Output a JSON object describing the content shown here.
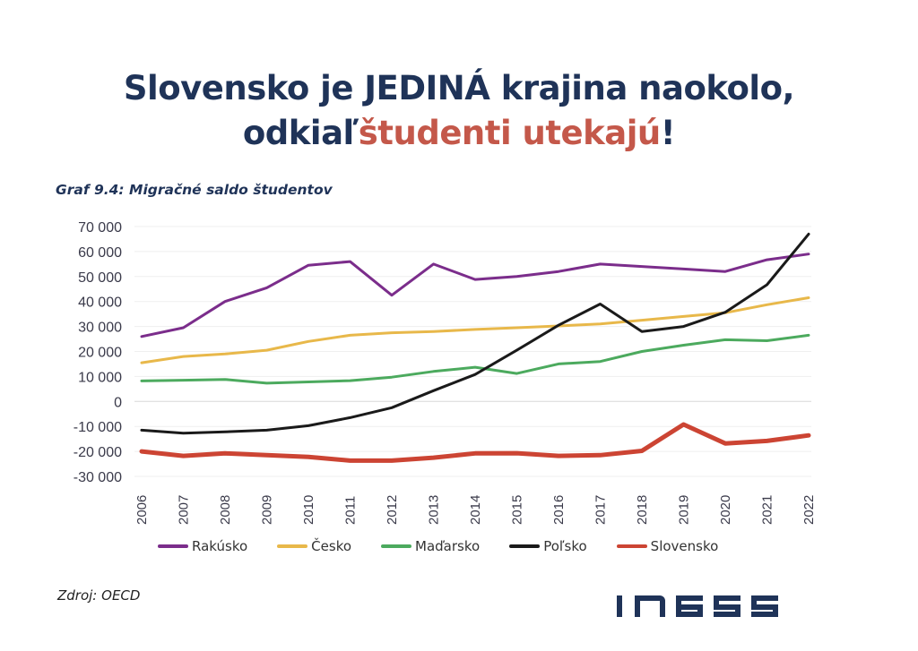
{
  "headline": {
    "line1": "Slovensko je JEDINÁ krajina naokolo,",
    "line2_prefix": "odkiaľ",
    "line2_accent": "študenti utekajú",
    "line2_suffix": "!",
    "colors": {
      "main": "#1f3358",
      "accent": "#c4584a"
    }
  },
  "subtitle": "Graf 9.4: Migračné saldo študentov",
  "source": "Zdroj: OECD",
  "logo": {
    "text": "iness",
    "color": "#1f3358"
  },
  "chart_data": {
    "type": "line",
    "title": "Graf 9.4: Migračné saldo študentov",
    "xlabel": "",
    "ylabel": "",
    "ylim": [
      -30000,
      70000
    ],
    "yticks": [
      70000,
      60000,
      50000,
      40000,
      30000,
      20000,
      10000,
      0,
      -10000,
      -20000,
      -30000
    ],
    "ytick_labels": [
      "70 000",
      "60 000",
      "50 000",
      "40 000",
      "30 000",
      "20 000",
      "10 000",
      "0",
      "-10 000",
      "-20 000",
      "-30 000"
    ],
    "grid": true,
    "legend_position": "bottom",
    "x": [
      "2006",
      "2007",
      "2008",
      "2009",
      "2010",
      "2011",
      "2012",
      "2013",
      "2014",
      "2015",
      "2016",
      "2017",
      "2018",
      "2019",
      "2020",
      "2021",
      "2022"
    ],
    "series": [
      {
        "name": "Rakúsko",
        "color": "#7b2d8b",
        "width": 3,
        "values": [
          26000,
          29500,
          40000,
          45500,
          54500,
          56000,
          42500,
          55000,
          48800,
          50000,
          52000,
          55000,
          54000,
          53000,
          52000,
          56700,
          59000
        ]
      },
      {
        "name": "Česko",
        "color": "#e8b84a",
        "width": 3,
        "values": [
          15500,
          18000,
          19000,
          20500,
          24000,
          26500,
          27500,
          28000,
          28800,
          29500,
          30200,
          31000,
          32500,
          34000,
          35500,
          38700,
          41500
        ]
      },
      {
        "name": "Maďarsko",
        "color": "#4caa5e",
        "width": 3,
        "values": [
          8200,
          8500,
          8800,
          7300,
          7800,
          8300,
          9700,
          12000,
          13700,
          11200,
          15000,
          16000,
          20000,
          22500,
          24700,
          24300,
          26500
        ]
      },
      {
        "name": "Poľsko",
        "color": "#1a1a1a",
        "width": 3,
        "values": [
          -11500,
          -12700,
          -12200,
          -11500,
          -9700,
          -6500,
          -2500,
          4300,
          10800,
          20500,
          30500,
          39000,
          28000,
          30000,
          35700,
          46700,
          67000
        ]
      },
      {
        "name": "Slovensko",
        "color": "#cc4433",
        "width": 5,
        "values": [
          -20000,
          -21800,
          -20800,
          -21500,
          -22200,
          -23700,
          -23700,
          -22500,
          -20800,
          -20700,
          -21800,
          -21500,
          -19800,
          -9200,
          -16800,
          -15800,
          -13600
        ]
      }
    ]
  }
}
